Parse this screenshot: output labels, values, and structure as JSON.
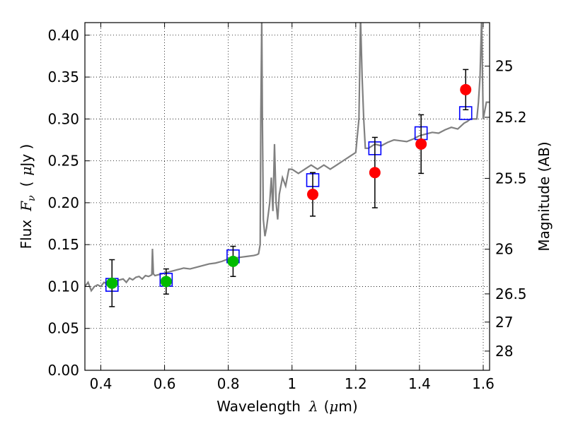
{
  "chart_data": {
    "type": "scatter",
    "xlabel": {
      "prefix": "Wavelength",
      "symbol": "λ",
      "unit_open": "(",
      "unit_mu": "μ",
      "unit_rest": "m)"
    },
    "ylabel": {
      "prefix": "Flux",
      "symbol": "F",
      "subscript": "ν",
      "unit_open": "(",
      "unit_mu": "μ",
      "unit_rest": "Jy )"
    },
    "y2label": "Magnitude (AB)",
    "xlim": [
      0.35,
      1.62
    ],
    "ylim": [
      0.0,
      0.415
    ],
    "grid": true,
    "x_ticks": [
      {
        "value": 0.4,
        "label": "0.4"
      },
      {
        "value": 0.6,
        "label": "0.6"
      },
      {
        "value": 0.8,
        "label": "0.8"
      },
      {
        "value": 1.0,
        "label": "1"
      },
      {
        "value": 1.2,
        "label": "1.2"
      },
      {
        "value": 1.4,
        "label": "1.4"
      },
      {
        "value": 1.6,
        "label": "1.6"
      }
    ],
    "y_ticks": [
      {
        "value": 0.0,
        "label": "0.00"
      },
      {
        "value": 0.05,
        "label": "0.05"
      },
      {
        "value": 0.1,
        "label": "0.10"
      },
      {
        "value": 0.15,
        "label": "0.15"
      },
      {
        "value": 0.2,
        "label": "0.20"
      },
      {
        "value": 0.25,
        "label": "0.25"
      },
      {
        "value": 0.3,
        "label": "0.30"
      },
      {
        "value": 0.35,
        "label": "0.35"
      },
      {
        "value": 0.4,
        "label": "0.40"
      }
    ],
    "y2_ticks": [
      {
        "mag": 25,
        "label": "25"
      },
      {
        "mag": 25.2,
        "label": "25.2"
      },
      {
        "mag": 25.5,
        "label": "25.5"
      },
      {
        "mag": 26,
        "label": "26"
      },
      {
        "mag": 26.5,
        "label": "26.5"
      },
      {
        "mag": 27,
        "label": "27"
      },
      {
        "mag": 28,
        "label": "28"
      }
    ],
    "model_spectrum": {
      "color": "#808080",
      "x": [
        0.35,
        0.36,
        0.37,
        0.38,
        0.39,
        0.4,
        0.41,
        0.42,
        0.43,
        0.44,
        0.45,
        0.46,
        0.47,
        0.48,
        0.49,
        0.5,
        0.51,
        0.52,
        0.53,
        0.54,
        0.55,
        0.56,
        0.562,
        0.565,
        0.57,
        0.58,
        0.59,
        0.6,
        0.62,
        0.64,
        0.66,
        0.68,
        0.7,
        0.72,
        0.74,
        0.76,
        0.78,
        0.8,
        0.82,
        0.84,
        0.86,
        0.88,
        0.89,
        0.895,
        0.9,
        0.902,
        0.905,
        0.907,
        0.91,
        0.915,
        0.92,
        0.93,
        0.935,
        0.94,
        0.945,
        0.95,
        0.955,
        0.96,
        0.97,
        0.98,
        0.99,
        1.0,
        1.02,
        1.04,
        1.06,
        1.08,
        1.1,
        1.12,
        1.14,
        1.16,
        1.18,
        1.2,
        1.21,
        1.215,
        1.22,
        1.225,
        1.23,
        1.24,
        1.26,
        1.28,
        1.3,
        1.32,
        1.34,
        1.36,
        1.38,
        1.4,
        1.42,
        1.44,
        1.46,
        1.48,
        1.5,
        1.52,
        1.54,
        1.55,
        1.56,
        1.57,
        1.58,
        1.585,
        1.59,
        1.595,
        1.6,
        1.605,
        1.61,
        1.62
      ],
      "y": [
        0.1,
        0.105,
        0.095,
        0.1,
        0.102,
        0.1,
        0.105,
        0.103,
        0.106,
        0.104,
        0.107,
        0.108,
        0.109,
        0.105,
        0.11,
        0.108,
        0.111,
        0.112,
        0.109,
        0.113,
        0.112,
        0.114,
        0.145,
        0.115,
        0.113,
        0.114,
        0.115,
        0.116,
        0.118,
        0.12,
        0.122,
        0.121,
        0.123,
        0.125,
        0.127,
        0.128,
        0.13,
        0.133,
        0.134,
        0.135,
        0.136,
        0.137,
        0.138,
        0.139,
        0.15,
        0.3,
        0.42,
        0.3,
        0.18,
        0.16,
        0.17,
        0.2,
        0.23,
        0.19,
        0.27,
        0.2,
        0.18,
        0.21,
        0.23,
        0.22,
        0.24,
        0.24,
        0.235,
        0.24,
        0.245,
        0.24,
        0.245,
        0.24,
        0.245,
        0.25,
        0.255,
        0.26,
        0.3,
        0.42,
        0.35,
        0.3,
        0.265,
        0.265,
        0.27,
        0.268,
        0.272,
        0.275,
        0.274,
        0.273,
        0.276,
        0.28,
        0.282,
        0.284,
        0.283,
        0.287,
        0.29,
        0.288,
        0.295,
        0.297,
        0.3,
        0.3,
        0.3,
        0.32,
        0.35,
        0.42,
        0.3,
        0.31,
        0.32,
        0.32
      ]
    },
    "model_boxes": {
      "color": "#0000ff",
      "x": [
        0.435,
        0.605,
        0.815,
        1.065,
        1.26,
        1.405,
        1.545
      ],
      "y": [
        0.102,
        0.108,
        0.136,
        0.227,
        0.265,
        0.283,
        0.307
      ]
    },
    "observed_points": [
      {
        "x": 0.435,
        "y": 0.104,
        "err": 0.028,
        "color": "#00bb00"
      },
      {
        "x": 0.605,
        "y": 0.106,
        "err": 0.015,
        "color": "#00bb00"
      },
      {
        "x": 0.815,
        "y": 0.13,
        "err": 0.018,
        "color": "#00bb00"
      },
      {
        "x": 1.065,
        "y": 0.21,
        "err": 0.026,
        "color": "#ff0000"
      },
      {
        "x": 1.26,
        "y": 0.236,
        "err": 0.042,
        "color": "#ff0000"
      },
      {
        "x": 1.405,
        "y": 0.27,
        "err": 0.035,
        "color": "#ff0000"
      },
      {
        "x": 1.545,
        "y": 0.335,
        "err": 0.024,
        "color": "#ff0000"
      }
    ]
  }
}
